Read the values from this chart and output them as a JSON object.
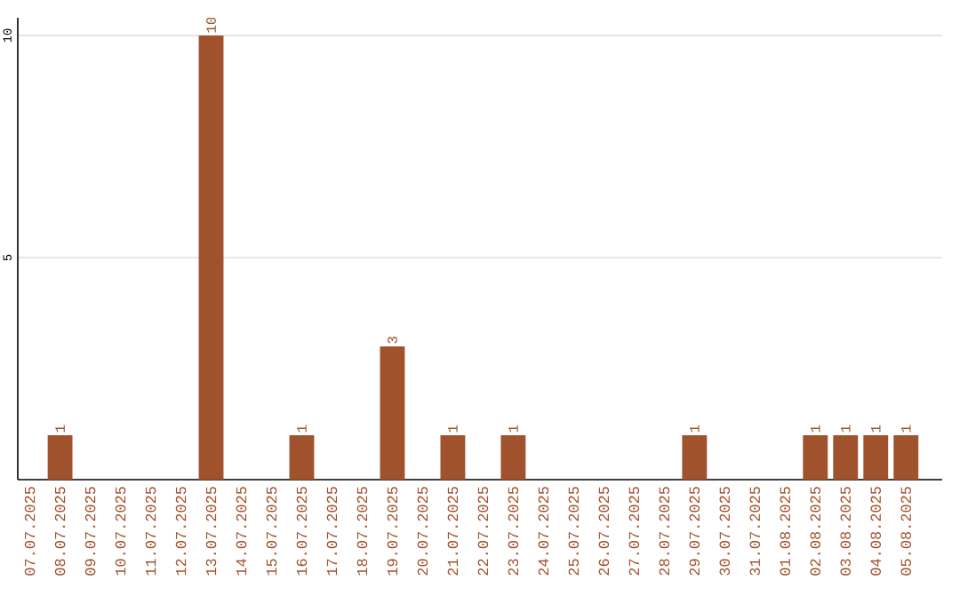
{
  "chart_data": {
    "type": "bar",
    "categories": [
      "07.07.2025",
      "08.07.2025",
      "09.07.2025",
      "10.07.2025",
      "11.07.2025",
      "12.07.2025",
      "13.07.2025",
      "14.07.2025",
      "15.07.2025",
      "16.07.2025",
      "17.07.2025",
      "18.07.2025",
      "19.07.2025",
      "20.07.2025",
      "21.07.2025",
      "22.07.2025",
      "23.07.2025",
      "24.07.2025",
      "25.07.2025",
      "26.07.2025",
      "27.07.2025",
      "28.07.2025",
      "29.07.2025",
      "30.07.2025",
      "31.07.2025",
      "01.08.2025",
      "02.08.2025",
      "03.08.2025",
      "04.08.2025",
      "05.08.2025"
    ],
    "values": [
      0,
      1,
      0,
      0,
      0,
      0,
      10,
      0,
      0,
      1,
      0,
      0,
      3,
      0,
      1,
      0,
      1,
      0,
      0,
      0,
      0,
      0,
      1,
      0,
      0,
      0,
      1,
      1,
      1,
      1
    ],
    "value_labels": [
      null,
      "1",
      null,
      null,
      null,
      null,
      "10",
      null,
      null,
      "1",
      null,
      null,
      "3",
      null,
      "1",
      null,
      "1",
      null,
      null,
      null,
      null,
      null,
      "1",
      null,
      null,
      null,
      "1",
      "1",
      "1",
      "1"
    ],
    "color": "#a0522d",
    "ylim": [
      0,
      10.4
    ],
    "yticks": [
      5,
      10
    ],
    "grid": "y",
    "legend": false
  }
}
